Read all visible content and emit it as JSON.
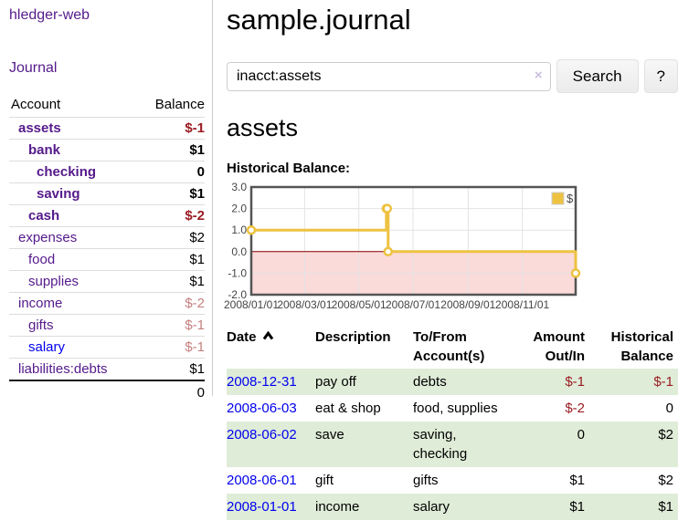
{
  "app_title": "hledger-web",
  "sidebar": {
    "nav_journal": "Journal",
    "header": {
      "account": "Account",
      "balance": "Balance"
    },
    "accounts": [
      {
        "name": "assets",
        "balance": "$-1",
        "level": 0,
        "emphasis": true,
        "tone": "negative-strong"
      },
      {
        "name": "bank",
        "balance": "$1",
        "level": 1,
        "emphasis": true,
        "tone": "normal"
      },
      {
        "name": "checking",
        "balance": "0",
        "level": 2,
        "emphasis": true,
        "tone": "normal"
      },
      {
        "name": "saving",
        "balance": "$1",
        "level": 2,
        "emphasis": true,
        "tone": "normal"
      },
      {
        "name": "cash",
        "balance": "$-2",
        "level": 1,
        "emphasis": true,
        "tone": "negative-strong"
      },
      {
        "name": "expenses",
        "balance": "$2",
        "level": 0,
        "emphasis": false,
        "tone": "normal"
      },
      {
        "name": "food",
        "balance": "$1",
        "level": 1,
        "emphasis": false,
        "tone": "normal"
      },
      {
        "name": "supplies",
        "balance": "$1",
        "level": 1,
        "emphasis": false,
        "tone": "normal"
      },
      {
        "name": "income",
        "balance": "$-2",
        "level": 0,
        "emphasis": false,
        "tone": "negative-muted"
      },
      {
        "name": "gifts",
        "balance": "$-1",
        "level": 1,
        "emphasis": false,
        "tone": "negative-muted"
      },
      {
        "name": "salary",
        "balance": "$-1",
        "level": 1,
        "emphasis": false,
        "tone": "negative-muted",
        "link_color": "blue"
      },
      {
        "name": "liabilities:debts",
        "balance": "$1",
        "level": 0,
        "emphasis": false,
        "tone": "normal"
      }
    ],
    "total": "0"
  },
  "main": {
    "title": "sample.journal",
    "search": {
      "value": "inacct:assets",
      "clear_icon": "×",
      "search_button": "Search",
      "help_button": "?"
    },
    "account_heading": "assets",
    "chart_label": "Historical Balance:"
  },
  "register": {
    "headers": {
      "date": "Date",
      "description": "Description",
      "tofrom": "To/From Account(s)",
      "amount": "Amount Out/In",
      "balance": "Historical Balance"
    },
    "rows": [
      {
        "date": "2008-12-31",
        "description": "pay off",
        "accounts": "debts",
        "amount": "$-1",
        "amount_negative": true,
        "balance": "$-1",
        "balance_negative": true
      },
      {
        "date": "2008-06-03",
        "description": "eat & shop",
        "accounts": "food, supplies",
        "amount": "$-2",
        "amount_negative": true,
        "balance": "0",
        "balance_negative": false
      },
      {
        "date": "2008-06-02",
        "description": "save",
        "accounts": "saving,\nchecking",
        "amount": "0",
        "amount_negative": false,
        "balance": "$2",
        "balance_negative": false
      },
      {
        "date": "2008-06-01",
        "description": "gift",
        "accounts": "gifts",
        "amount": "$1",
        "amount_negative": false,
        "balance": "$2",
        "balance_negative": false
      },
      {
        "date": "2008-01-01",
        "description": "income",
        "accounts": "salary",
        "amount": "$1",
        "amount_negative": false,
        "balance": "$1",
        "balance_negative": false
      }
    ]
  },
  "colors": {
    "link_purple": "#551a8b",
    "link_blue": "#0000ee",
    "negative_strong": "#9b1c23",
    "negative_muted": "#c4807e",
    "row_green": "#dfecd8",
    "series_gold": "#edc240"
  },
  "chart_data": {
    "type": "line",
    "title": "Historical Balance:",
    "x": [
      "2008-01-01",
      "2008-06-01",
      "2008-06-02",
      "2008-06-03",
      "2008-12-31"
    ],
    "series": [
      {
        "name": "$",
        "values": [
          1,
          2,
          2,
          0,
          -1
        ]
      }
    ],
    "step": true,
    "xlim": [
      "2008-01-01",
      "2008-12-31"
    ],
    "ylim": [
      -2,
      3
    ],
    "x_tick_dates": [
      "2008-01-01",
      "2008-03-01",
      "2008-05-01",
      "2008-07-01",
      "2008-09-01",
      "2008-11-01"
    ],
    "x_tick_labels": [
      "2008/01/01",
      "2008/03/01",
      "2008/05/01",
      "2008/07/01",
      "2008/09/01",
      "2008/11/01"
    ],
    "y_tick_labels": [
      "3.0",
      "2.0",
      "1.0",
      "0.0",
      "-1.0",
      "-2.0"
    ],
    "grid": true,
    "legend": {
      "position": "top-right",
      "label": "$"
    },
    "series_color": "#edc240",
    "marker_fill": "#ffffff",
    "negative_region_color": "#fbdada",
    "zero_line_color": "#8b0000",
    "border_color": "#545454",
    "grid_color": "#e3e3e3",
    "tick_text_color": "#444444"
  }
}
